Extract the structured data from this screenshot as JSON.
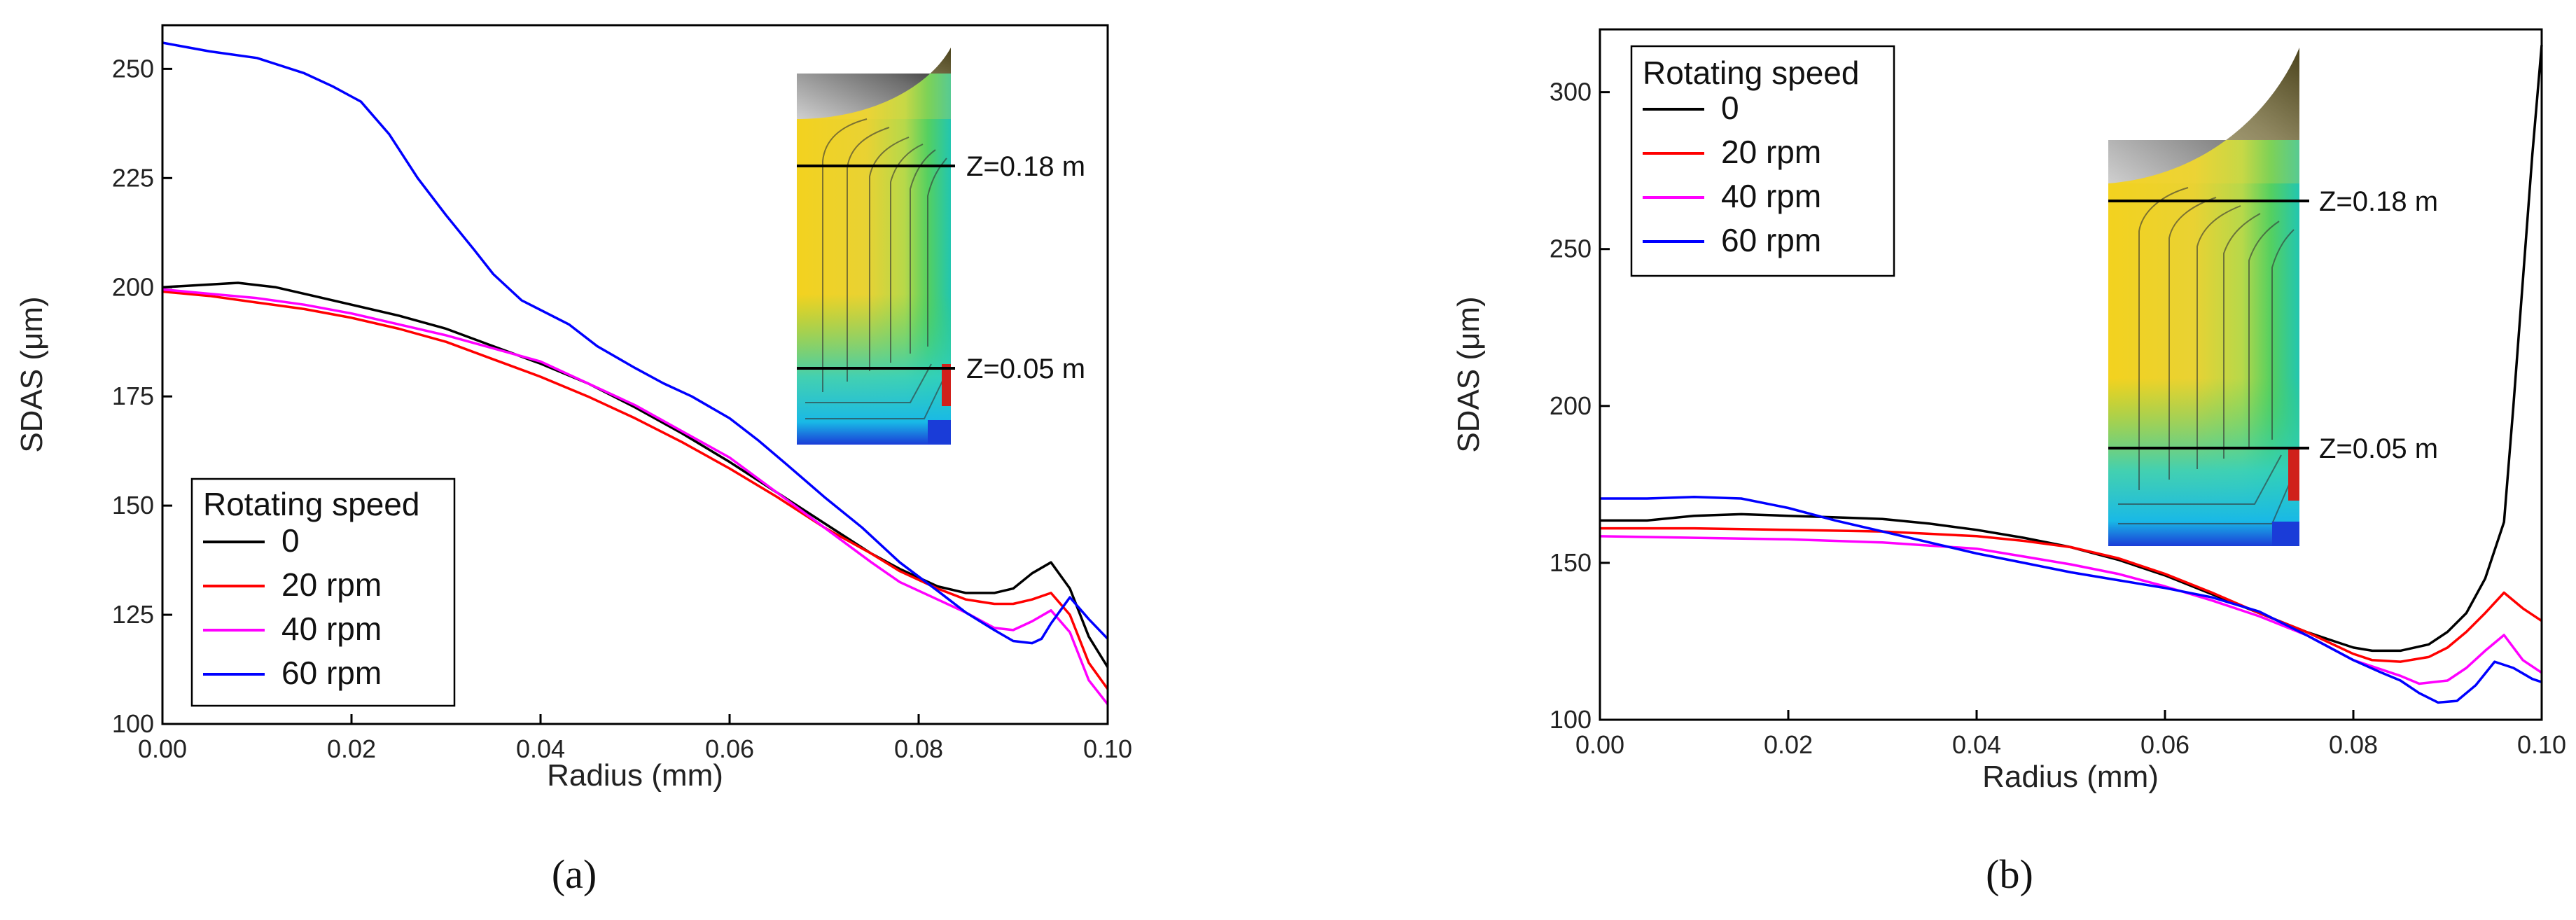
{
  "chart_data": [
    {
      "type": "line",
      "panel_label": "(a)",
      "xlabel": "Radius (mm)",
      "ylabel": "SDAS (μm)",
      "xlim": [
        0,
        0.1
      ],
      "ylim": [
        100,
        260
      ],
      "x_ticks": [
        "0.00",
        "0.02",
        "0.04",
        "0.06",
        "0.08",
        "0.10"
      ],
      "y_ticks": [
        "100",
        "125",
        "150",
        "175",
        "200",
        "225",
        "250"
      ],
      "legend_title": "Rotating speed",
      "legend_position": "bottom-left",
      "inset_labels": [
        "Z=0.18 m",
        "Z=0.05 m"
      ],
      "series": [
        {
          "name": "0",
          "color": "#000000",
          "points": [
            [
              0,
              200
            ],
            [
              0.004,
              200.5
            ],
            [
              0.008,
              201
            ],
            [
              0.012,
              200
            ],
            [
              0.016,
              198
            ],
            [
              0.02,
              196
            ],
            [
              0.025,
              193.5
            ],
            [
              0.03,
              190.5
            ],
            [
              0.035,
              186.5
            ],
            [
              0.04,
              182.5
            ],
            [
              0.045,
              178
            ],
            [
              0.05,
              172.5
            ],
            [
              0.055,
              166.5
            ],
            [
              0.06,
              160
            ],
            [
              0.065,
              153
            ],
            [
              0.07,
              146
            ],
            [
              0.075,
              139
            ],
            [
              0.078,
              135.5
            ],
            [
              0.082,
              131.5
            ],
            [
              0.085,
              130
            ],
            [
              0.088,
              130
            ],
            [
              0.09,
              131
            ],
            [
              0.092,
              134.5
            ],
            [
              0.094,
              137
            ],
            [
              0.096,
              131
            ],
            [
              0.098,
              120
            ],
            [
              0.1,
              113
            ]
          ]
        },
        {
          "name": "20 rpm",
          "color": "#ff0000",
          "points": [
            [
              0,
              199
            ],
            [
              0.005,
              198
            ],
            [
              0.01,
              196.5
            ],
            [
              0.015,
              195
            ],
            [
              0.02,
              193
            ],
            [
              0.025,
              190.5
            ],
            [
              0.03,
              187.5
            ],
            [
              0.035,
              183.5
            ],
            [
              0.04,
              179.5
            ],
            [
              0.045,
              175
            ],
            [
              0.05,
              170
            ],
            [
              0.055,
              164.5
            ],
            [
              0.06,
              158.5
            ],
            [
              0.065,
              152
            ],
            [
              0.07,
              145
            ],
            [
              0.075,
              139
            ],
            [
              0.078,
              135
            ],
            [
              0.082,
              131
            ],
            [
              0.085,
              128.5
            ],
            [
              0.088,
              127.5
            ],
            [
              0.09,
              127.5
            ],
            [
              0.092,
              128.5
            ],
            [
              0.094,
              130
            ],
            [
              0.096,
              125
            ],
            [
              0.098,
              114
            ],
            [
              0.1,
              108
            ]
          ]
        },
        {
          "name": "40 rpm",
          "color": "#ff00ff",
          "points": [
            [
              0,
              199.5
            ],
            [
              0.005,
              198.5
            ],
            [
              0.01,
              197.5
            ],
            [
              0.015,
              196
            ],
            [
              0.02,
              194
            ],
            [
              0.025,
              191.5
            ],
            [
              0.03,
              189
            ],
            [
              0.035,
              186
            ],
            [
              0.04,
              183
            ],
            [
              0.045,
              178
            ],
            [
              0.05,
              173
            ],
            [
              0.055,
              167
            ],
            [
              0.06,
              161
            ],
            [
              0.065,
              153
            ],
            [
              0.07,
              145
            ],
            [
              0.075,
              137
            ],
            [
              0.078,
              132.5
            ],
            [
              0.082,
              128.5
            ],
            [
              0.085,
              125.5
            ],
            [
              0.088,
              122
            ],
            [
              0.09,
              121.5
            ],
            [
              0.092,
              123.5
            ],
            [
              0.094,
              126
            ],
            [
              0.096,
              121
            ],
            [
              0.098,
              110
            ],
            [
              0.1,
              104.5
            ]
          ]
        },
        {
          "name": "60 rpm",
          "color": "#0000ff",
          "points": [
            [
              0,
              256
            ],
            [
              0.005,
              254
            ],
            [
              0.01,
              252.5
            ],
            [
              0.015,
              249
            ],
            [
              0.018,
              246
            ],
            [
              0.021,
              242.5
            ],
            [
              0.024,
              235
            ],
            [
              0.027,
              225
            ],
            [
              0.03,
              216.5
            ],
            [
              0.033,
              208.5
            ],
            [
              0.035,
              203
            ],
            [
              0.038,
              197
            ],
            [
              0.043,
              191.5
            ],
            [
              0.046,
              186.5
            ],
            [
              0.05,
              181.5
            ],
            [
              0.053,
              178
            ],
            [
              0.056,
              175
            ],
            [
              0.06,
              170
            ],
            [
              0.063,
              165
            ],
            [
              0.066,
              159.5
            ],
            [
              0.07,
              152
            ],
            [
              0.074,
              145
            ],
            [
              0.078,
              137
            ],
            [
              0.082,
              130.5
            ],
            [
              0.085,
              125.5
            ],
            [
              0.088,
              121.5
            ],
            [
              0.09,
              119
            ],
            [
              0.092,
              118.5
            ],
            [
              0.093,
              119.5
            ],
            [
              0.094,
              123
            ],
            [
              0.096,
              129
            ],
            [
              0.098,
              124
            ],
            [
              0.1,
              119.5
            ]
          ]
        }
      ]
    },
    {
      "type": "line",
      "panel_label": "(b)",
      "xlabel": "Radius (mm)",
      "ylabel": "SDAS (μm)",
      "xlim": [
        0,
        0.1
      ],
      "ylim": [
        100,
        320
      ],
      "x_ticks": [
        "0.00",
        "0.02",
        "0.04",
        "0.06",
        "0.08",
        "0.10"
      ],
      "y_ticks": [
        "100",
        "150",
        "200",
        "250",
        "300"
      ],
      "legend_title": "Rotating speed",
      "legend_position": "top-left",
      "inset_labels": [
        "Z=0.18 m",
        "Z=0.05 m"
      ],
      "series": [
        {
          "name": "0",
          "color": "#000000",
          "points": [
            [
              0,
              163.5
            ],
            [
              0.005,
              163.5
            ],
            [
              0.01,
              165
            ],
            [
              0.015,
              165.5
            ],
            [
              0.02,
              165
            ],
            [
              0.025,
              164.5
            ],
            [
              0.03,
              164
            ],
            [
              0.035,
              162.5
            ],
            [
              0.04,
              160.5
            ],
            [
              0.045,
              158
            ],
            [
              0.05,
              155
            ],
            [
              0.055,
              151
            ],
            [
              0.06,
              146
            ],
            [
              0.065,
              140
            ],
            [
              0.07,
              134
            ],
            [
              0.075,
              128
            ],
            [
              0.078,
              125
            ],
            [
              0.08,
              123
            ],
            [
              0.082,
              122
            ],
            [
              0.085,
              122
            ],
            [
              0.088,
              124
            ],
            [
              0.09,
              128
            ],
            [
              0.092,
              134
            ],
            [
              0.094,
              145
            ],
            [
              0.096,
              163
            ],
            [
              0.097,
              200
            ],
            [
              0.098,
              240
            ],
            [
              0.099,
              280
            ],
            [
              0.1,
              315
            ]
          ]
        },
        {
          "name": "20 rpm",
          "color": "#ff0000",
          "points": [
            [
              0,
              161
            ],
            [
              0.01,
              161
            ],
            [
              0.02,
              160.5
            ],
            [
              0.03,
              160
            ],
            [
              0.04,
              158.5
            ],
            [
              0.045,
              157
            ],
            [
              0.05,
              155
            ],
            [
              0.055,
              151.5
            ],
            [
              0.06,
              146.5
            ],
            [
              0.065,
              140.5
            ],
            [
              0.07,
              134
            ],
            [
              0.075,
              128
            ],
            [
              0.08,
              121
            ],
            [
              0.082,
              119
            ],
            [
              0.085,
              118.5
            ],
            [
              0.088,
              120
            ],
            [
              0.09,
              123
            ],
            [
              0.092,
              128
            ],
            [
              0.094,
              134
            ],
            [
              0.096,
              140.5
            ],
            [
              0.098,
              135.5
            ],
            [
              0.1,
              131.5
            ]
          ]
        },
        {
          "name": "40 rpm",
          "color": "#ff00ff",
          "points": [
            [
              0,
              158.5
            ],
            [
              0.01,
              158
            ],
            [
              0.02,
              157.5
            ],
            [
              0.03,
              156.5
            ],
            [
              0.04,
              154.5
            ],
            [
              0.045,
              152
            ],
            [
              0.05,
              149.5
            ],
            [
              0.055,
              146.5
            ],
            [
              0.06,
              142.5
            ],
            [
              0.065,
              138
            ],
            [
              0.07,
              133
            ],
            [
              0.075,
              127
            ],
            [
              0.08,
              119
            ],
            [
              0.083,
              116
            ],
            [
              0.085,
              114
            ],
            [
              0.087,
              111.5
            ],
            [
              0.09,
              112.5
            ],
            [
              0.092,
              116.5
            ],
            [
              0.094,
              122
            ],
            [
              0.096,
              127
            ],
            [
              0.098,
              119
            ],
            [
              0.1,
              115
            ]
          ]
        },
        {
          "name": "60 rpm",
          "color": "#0000ff",
          "points": [
            [
              0,
              170.5
            ],
            [
              0.005,
              170.5
            ],
            [
              0.01,
              171
            ],
            [
              0.015,
              170.5
            ],
            [
              0.02,
              167.5
            ],
            [
              0.025,
              163.5
            ],
            [
              0.03,
              160
            ],
            [
              0.035,
              156.5
            ],
            [
              0.04,
              153
            ],
            [
              0.045,
              150
            ],
            [
              0.05,
              147
            ],
            [
              0.055,
              144.5
            ],
            [
              0.06,
              142
            ],
            [
              0.065,
              139
            ],
            [
              0.07,
              134.5
            ],
            [
              0.075,
              127
            ],
            [
              0.08,
              119
            ],
            [
              0.083,
              115
            ],
            [
              0.085,
              112.5
            ],
            [
              0.087,
              108.5
            ],
            [
              0.089,
              105.5
            ],
            [
              0.091,
              106
            ],
            [
              0.093,
              111
            ],
            [
              0.095,
              118.5
            ],
            [
              0.097,
              116.5
            ],
            [
              0.099,
              113
            ],
            [
              0.1,
              112
            ]
          ]
        }
      ]
    }
  ]
}
